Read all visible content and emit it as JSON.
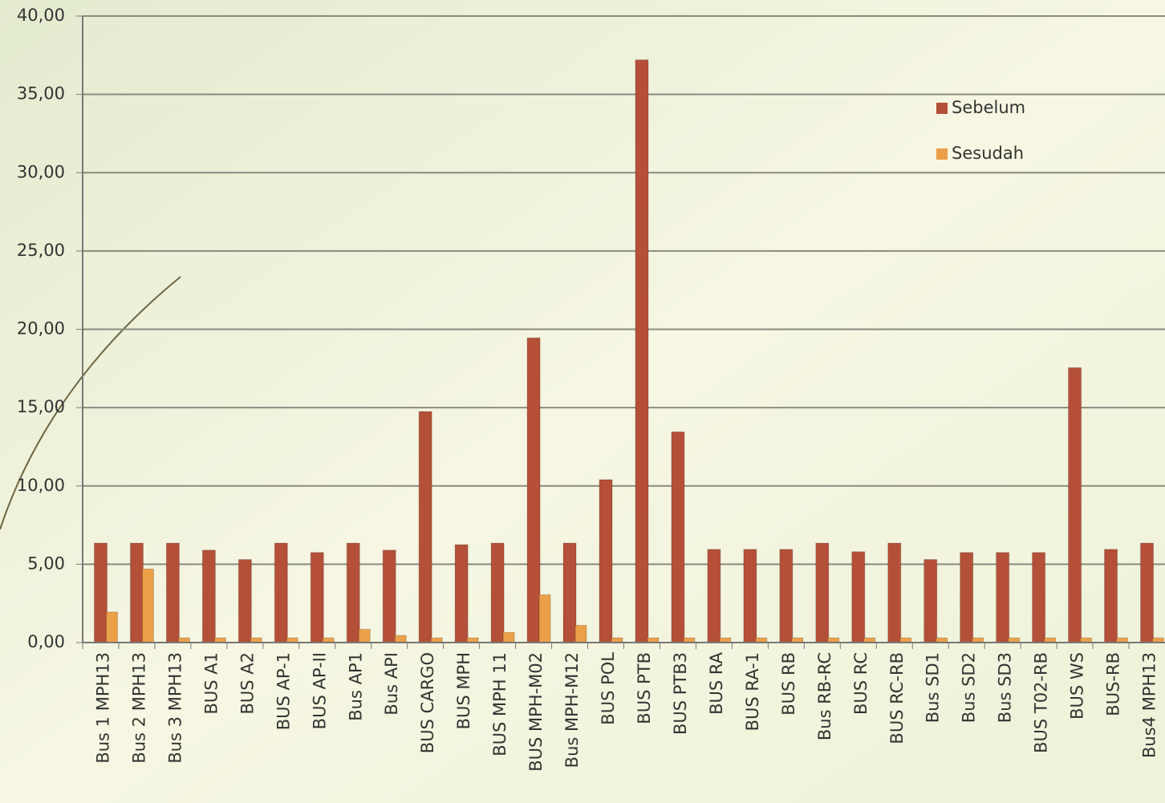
{
  "chart_data": {
    "type": "bar",
    "categories": [
      "Bus 1 MPH13",
      "Bus 2 MPH13",
      "Bus 3 MPH13",
      "BUS A1",
      "BUS A2",
      "BUS AP-1",
      "BUS AP-II",
      "Bus AP1",
      "Bus API",
      "BUS CARGO",
      "BUS MPH",
      "BUS MPH 11",
      "BUS MPH-M02",
      "Bus MPH-M12",
      "BUS POL",
      "BUS PTB",
      "BUS PTB3",
      "BUS RA",
      "BUS RA-1",
      "BUS RB",
      "Bus RB-RC",
      "BUS RC",
      "BUS RC-RB",
      "Bus SD1",
      "Bus SD2",
      "Bus SD3",
      "BUS T02-RB",
      "BUS WS",
      "BUS-RB",
      "Bus4 MPH13"
    ],
    "series": [
      {
        "name": "Sebelum",
        "color": "#b55038",
        "values": [
          6.35,
          6.35,
          6.35,
          5.9,
          5.3,
          6.35,
          5.75,
          6.35,
          5.9,
          14.75,
          6.25,
          6.35,
          19.45,
          6.35,
          10.4,
          37.2,
          13.45,
          5.95,
          5.95,
          5.95,
          6.35,
          5.8,
          6.35,
          5.3,
          5.75,
          5.75,
          5.75,
          17.55,
          5.95,
          6.35
        ]
      },
      {
        "name": "Sesudah",
        "color": "#eba048",
        "values": [
          1.95,
          4.7,
          0.3,
          0.3,
          0.3,
          0.3,
          0.3,
          0.85,
          0.45,
          0.3,
          0.3,
          0.65,
          3.05,
          1.1,
          0.3,
          0.3,
          0.3,
          0.3,
          0.3,
          0.3,
          0.3,
          0.3,
          0.3,
          0.3,
          0.3,
          0.3,
          0.3,
          0.3,
          0.3,
          0.3
        ]
      }
    ],
    "ylim": [
      0,
      40
    ],
    "yticks": [
      {
        "value": 0,
        "label": "0,00"
      },
      {
        "value": 5,
        "label": "5,00"
      },
      {
        "value": 10,
        "label": "10,00"
      },
      {
        "value": 15,
        "label": "15,00"
      },
      {
        "value": 20,
        "label": "20,00"
      },
      {
        "value": 25,
        "label": "25,00"
      },
      {
        "value": 30,
        "label": "30,00"
      },
      {
        "value": 35,
        "label": "35,00"
      },
      {
        "value": 40,
        "label": "40,00"
      }
    ],
    "grid": true,
    "legend": "right"
  }
}
